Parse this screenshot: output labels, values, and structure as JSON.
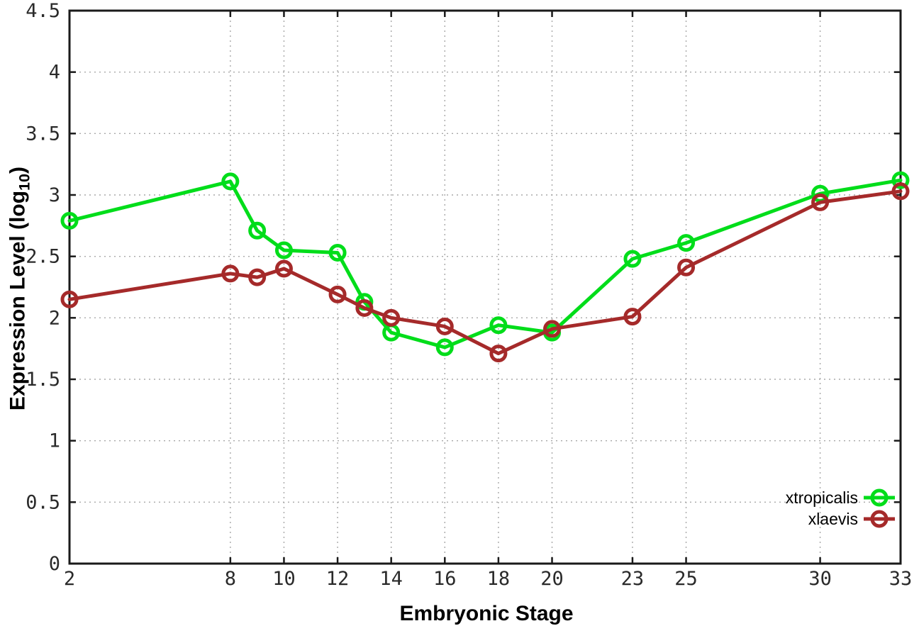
{
  "chart_data": {
    "type": "line",
    "title": "",
    "xlabel": "Embryonic Stage",
    "ylabel": "Expression Level (log10)",
    "ylabel_parts": {
      "main": "Expression Level (log",
      "sub": "10",
      "close": ")"
    },
    "xlim": [
      2,
      33
    ],
    "ylim": [
      0,
      4.5
    ],
    "grid": true,
    "legend_position": "bottom-right-inside",
    "x": [
      2,
      8,
      9,
      10,
      12,
      13,
      14,
      16,
      18,
      20,
      23,
      25,
      30,
      33
    ],
    "xticks": {
      "values": [
        2,
        8,
        10,
        12,
        14,
        16,
        18,
        20,
        23,
        25,
        30,
        33
      ],
      "labels": [
        "2",
        "8",
        "10",
        "12",
        "14",
        "16",
        "18",
        "20",
        "23",
        "25",
        "30",
        "33"
      ]
    },
    "yticks": {
      "values": [
        0,
        0.5,
        1,
        1.5,
        2,
        2.5,
        3,
        3.5,
        4,
        4.5
      ],
      "labels": [
        "0",
        "0.5",
        "1",
        "1.5",
        "2",
        "2.5",
        "3",
        "3.5",
        "4",
        "4.5"
      ]
    },
    "series": [
      {
        "name": "xtropicalis",
        "color": "#00dd1a",
        "marker": "open-circle",
        "values": [
          2.79,
          3.11,
          2.71,
          2.55,
          2.53,
          2.13,
          1.88,
          1.76,
          1.94,
          1.88,
          2.48,
          2.61,
          3.01,
          3.12
        ]
      },
      {
        "name": "xlaevis",
        "color": "#a52a2a",
        "marker": "open-circle",
        "values": [
          2.15,
          2.36,
          2.33,
          2.4,
          2.19,
          2.08,
          2.0,
          1.93,
          1.71,
          1.91,
          2.01,
          2.41,
          2.94,
          3.03
        ]
      }
    ],
    "colors": {
      "grid": "#a8a8a8",
      "frame": "#1a1a1a",
      "tick_text": "#2a2a2a"
    }
  }
}
